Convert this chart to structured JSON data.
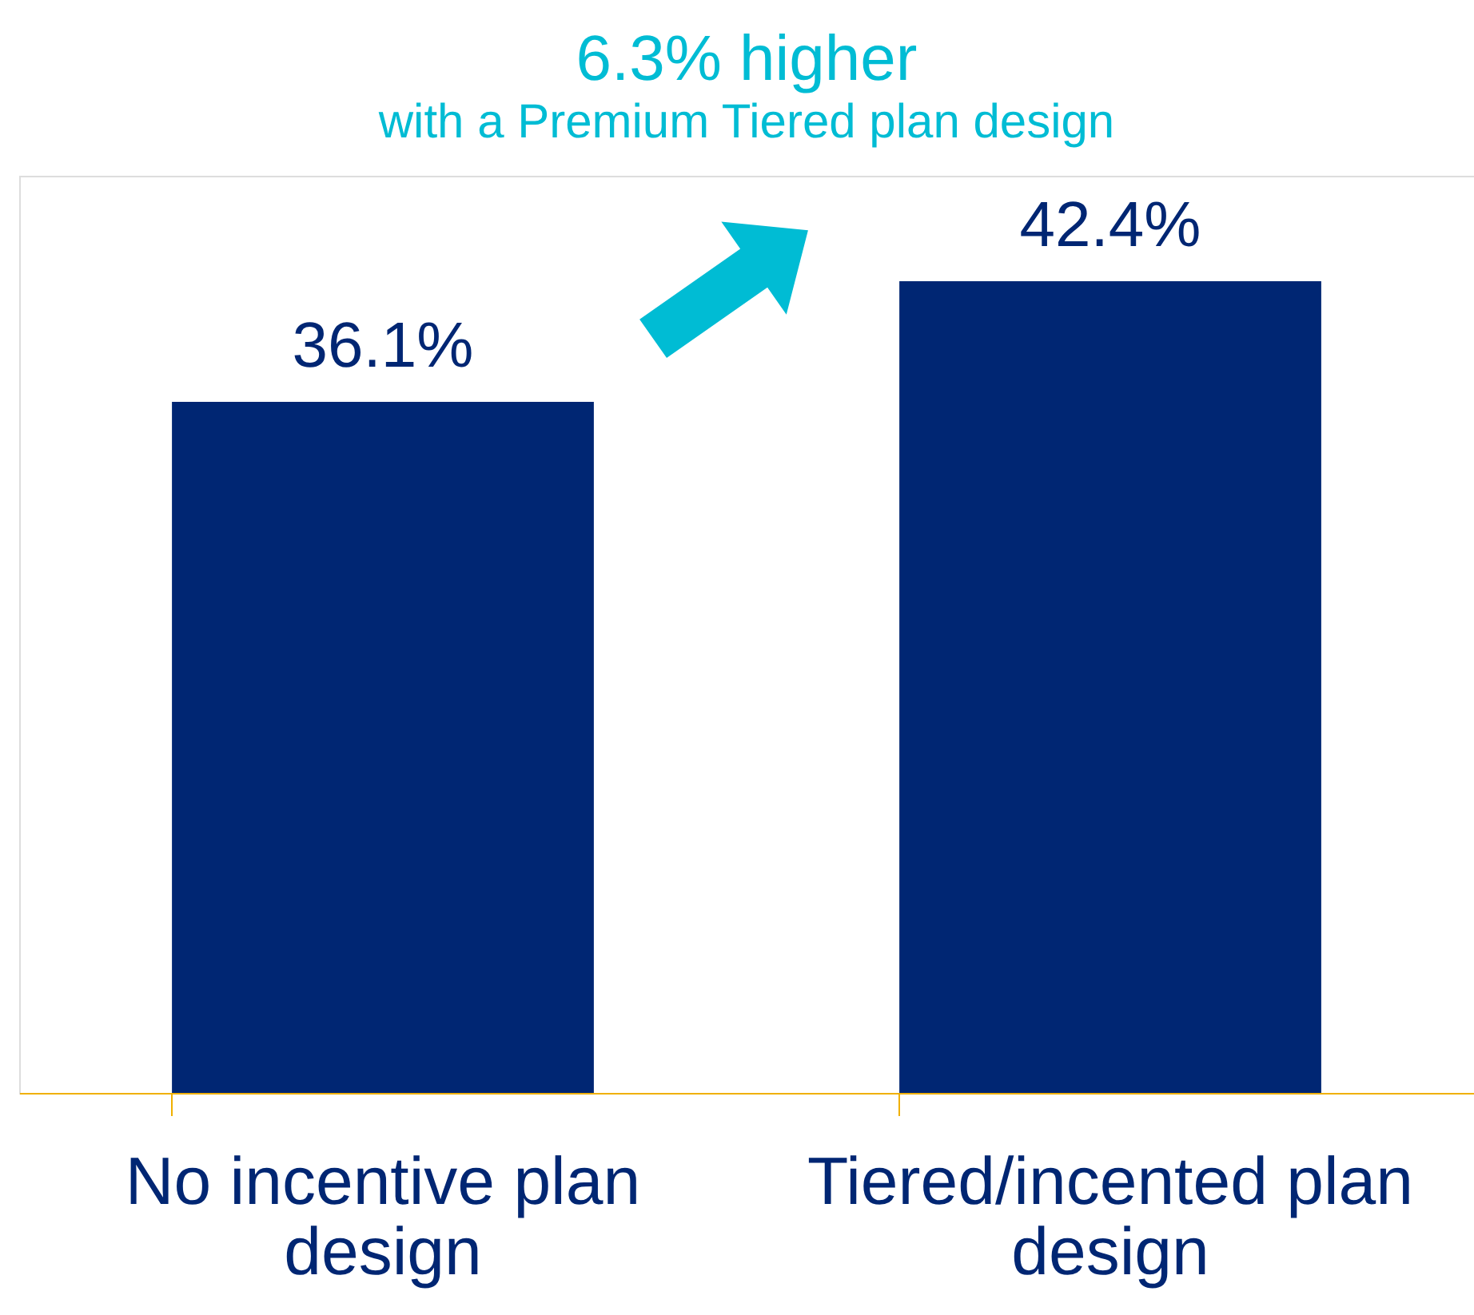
{
  "chart_data": {
    "type": "bar",
    "title": "6.3% higher",
    "subtitle": "with a Premium Tiered plan design",
    "categories": [
      "No incentive plan design",
      "Tiered/incented plan design"
    ],
    "values": [
      36.1,
      42.4
    ],
    "value_labels": [
      "36.1%",
      "42.4%"
    ],
    "color": "#002673",
    "grid": false,
    "tick_labels": "x"
  }
}
